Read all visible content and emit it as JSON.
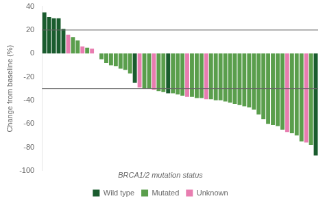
{
  "chart_data": {
    "type": "bar",
    "ylabel": "Change from baseline (%)",
    "categories": [
      null,
      null,
      null,
      null,
      null,
      null,
      null,
      null,
      null,
      null,
      null,
      null,
      null,
      null,
      null,
      null,
      null,
      null,
      null,
      null,
      null,
      null,
      null,
      null,
      null,
      null,
      null,
      null,
      null,
      null,
      null,
      null,
      null,
      null,
      null,
      null,
      null,
      null,
      null,
      null,
      null,
      null,
      null,
      null,
      null,
      null,
      null,
      null,
      null,
      null,
      null,
      null,
      null,
      null,
      null,
      null,
      null,
      null
    ],
    "series": [
      {
        "name": "Wild type",
        "color": "#1a5c2e",
        "values": [
          35,
          31,
          30,
          30,
          21,
          null,
          null,
          null,
          null,
          null,
          null,
          null,
          null,
          null,
          null,
          null,
          null,
          null,
          null,
          -25,
          null,
          null,
          null,
          null,
          null,
          null,
          -34,
          null,
          null,
          null,
          null,
          null,
          null,
          null,
          null,
          null,
          null,
          null,
          null,
          null,
          null,
          null,
          null,
          null,
          null,
          null,
          null,
          null,
          null,
          null,
          null,
          null,
          null,
          null,
          null,
          null,
          null,
          -87
        ]
      },
      {
        "name": "Mutated",
        "color": "#5a9e4c",
        "values": [
          null,
          null,
          null,
          null,
          null,
          null,
          14,
          11,
          null,
          5,
          null,
          0,
          -5,
          -8,
          -10,
          -11,
          -13,
          -14,
          -17,
          null,
          null,
          -30,
          -30,
          null,
          -32,
          -33,
          null,
          -34,
          -35,
          -36,
          null,
          -37,
          -38,
          -38,
          null,
          -39,
          -40,
          -40,
          -41,
          -42,
          -43,
          -44,
          -45,
          -46,
          -48,
          -52,
          -56,
          -60,
          -61,
          -62,
          -65,
          null,
          -68,
          -70,
          -75,
          null,
          -78,
          null
        ]
      },
      {
        "name": "Unknown",
        "color": "#e87db0",
        "values": [
          null,
          null,
          null,
          null,
          null,
          16,
          null,
          null,
          6,
          null,
          4,
          null,
          null,
          null,
          null,
          null,
          null,
          null,
          null,
          null,
          -29,
          null,
          null,
          -31,
          null,
          null,
          null,
          null,
          null,
          null,
          -37,
          null,
          null,
          null,
          -39,
          null,
          null,
          null,
          null,
          null,
          null,
          null,
          null,
          null,
          null,
          null,
          null,
          null,
          null,
          null,
          null,
          -67,
          null,
          null,
          null,
          -76,
          null,
          null
        ]
      }
    ],
    "ylim": [
      -100,
      40
    ],
    "yticks": [
      -100,
      -80,
      -60,
      -40,
      -20,
      0,
      20,
      40
    ],
    "hlines": [
      20,
      -30
    ],
    "legend_title": "BRCA1/2 mutation status",
    "legend": "bottom",
    "grid": false,
    "tick_labels": "y"
  }
}
